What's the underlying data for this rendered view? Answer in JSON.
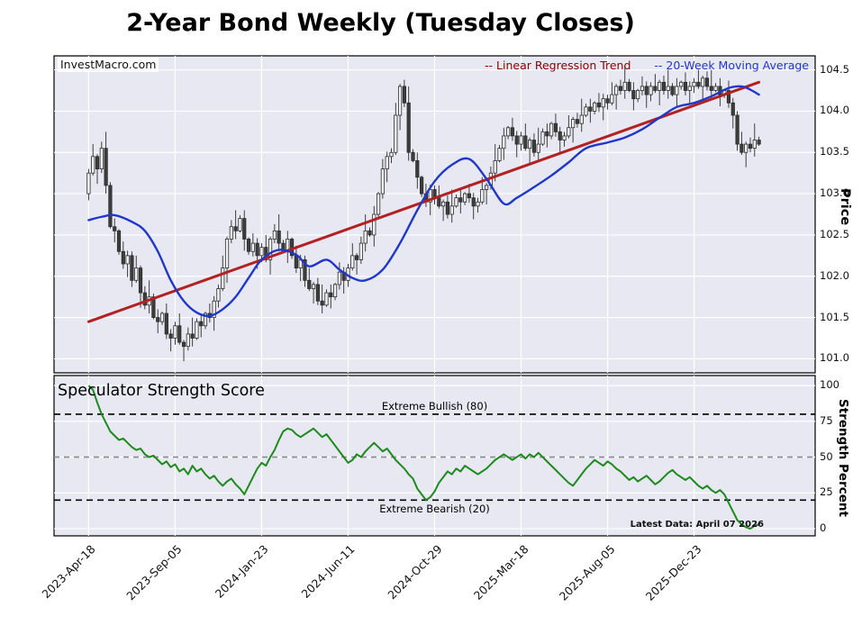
{
  "title": "2-Year Bond Weekly (Tuesday Closes)",
  "colors": {
    "panel_bg": "#e8e8f2",
    "grid": "#ffffff",
    "candle_edge": "#2b2b2b",
    "candle_down": "#3d3d3d",
    "candle_up": "#f2f2f7"
  },
  "chart_data": [
    {
      "type": "candlestick",
      "title": "",
      "watermark": "InvestMacro.com",
      "ylabel": "Price",
      "ylim": [
        100.83,
        104.67
      ],
      "ytick_values": [
        101.0,
        101.5,
        102.0,
        102.5,
        103.0,
        103.5,
        104.0,
        104.5
      ],
      "ytick_labels": [
        "101.0",
        "101.5",
        "102.0",
        "102.5",
        "103.0",
        "103.5",
        "104.0",
        "104.5"
      ],
      "x_unit": "week",
      "xlim_weeks": [
        -8,
        168
      ],
      "xtick_weeks": [
        0,
        20,
        40,
        60,
        80,
        100,
        120,
        140
      ],
      "xtick_labels": [
        "2023-Apr-18",
        "2023-Sep-05",
        "2024-Jan-23",
        "2024-Jun-11",
        "2024-Oct-29",
        "2025-Mar-18",
        "2025-Aug-05",
        "2025-Dec-23"
      ],
      "legend": [
        {
          "label": "-- Linear Regression Trend",
          "color": "#8b0000"
        },
        {
          "label": "-- 20-Week Moving Average",
          "color": "#2038c8"
        }
      ],
      "candles_weekly_closes": [
        103.25,
        103.45,
        103.3,
        103.55,
        103.1,
        102.6,
        102.55,
        102.3,
        102.15,
        102.25,
        101.95,
        102.1,
        101.8,
        101.65,
        101.75,
        101.5,
        101.45,
        101.55,
        101.3,
        101.25,
        101.4,
        101.2,
        101.15,
        101.3,
        101.25,
        101.45,
        101.4,
        101.55,
        101.5,
        101.7,
        101.85,
        102.1,
        102.45,
        102.6,
        102.55,
        102.7,
        102.45,
        102.3,
        102.4,
        102.25,
        102.35,
        102.2,
        102.45,
        102.55,
        102.4,
        102.3,
        102.45,
        102.25,
        102.1,
        102.2,
        101.95,
        101.85,
        101.9,
        101.7,
        101.65,
        101.8,
        101.75,
        101.9,
        102.05,
        101.95,
        102.1,
        102.25,
        102.2,
        102.4,
        102.55,
        102.5,
        102.75,
        103.0,
        103.3,
        103.45,
        103.5,
        103.95,
        104.3,
        104.1,
        103.5,
        103.4,
        103.2,
        103.0,
        102.9,
        103.05,
        102.95,
        102.85,
        102.9,
        102.75,
        102.85,
        102.95,
        102.9,
        103.0,
        102.95,
        102.85,
        102.9,
        103.05,
        103.1,
        103.25,
        103.4,
        103.55,
        103.7,
        103.8,
        103.7,
        103.6,
        103.7,
        103.55,
        103.65,
        103.5,
        103.6,
        103.75,
        103.7,
        103.85,
        103.75,
        103.65,
        103.7,
        103.8,
        103.9,
        103.85,
        103.95,
        104.05,
        104.0,
        104.1,
        104.05,
        104.15,
        104.1,
        104.2,
        104.3,
        104.25,
        104.35,
        104.25,
        104.15,
        104.25,
        104.3,
        104.2,
        104.3,
        104.25,
        104.35,
        104.25,
        104.3,
        104.2,
        104.3,
        104.35,
        104.25,
        104.3,
        104.35,
        104.3,
        104.4,
        104.3,
        104.25,
        104.3,
        104.2,
        104.25,
        104.1,
        103.95,
        103.6,
        103.5,
        103.6,
        103.55,
        103.65,
        103.6
      ],
      "wick_up_pattern": [
        0.05,
        0.15,
        0.03,
        0.08,
        0.2,
        0.04,
        0.1,
        0.02,
        0.12,
        0.06
      ],
      "wick_down_pattern": [
        0.08,
        0.03,
        0.18,
        0.05,
        0.1,
        0.02,
        0.14,
        0.04,
        0.06,
        0.16
      ],
      "regression": {
        "start_week": 0,
        "start": 101.45,
        "end_week": 155,
        "end": 104.35,
        "color": "#b22222"
      },
      "ma_color": "#2038c8",
      "ma20_points": [
        [
          0,
          102.68
        ],
        [
          3,
          102.72
        ],
        [
          6,
          102.74
        ],
        [
          10,
          102.66
        ],
        [
          13,
          102.55
        ],
        [
          16,
          102.3
        ],
        [
          19,
          101.95
        ],
        [
          22,
          101.7
        ],
        [
          25,
          101.56
        ],
        [
          28,
          101.52
        ],
        [
          31,
          101.6
        ],
        [
          34,
          101.75
        ],
        [
          37,
          101.98
        ],
        [
          40,
          102.2
        ],
        [
          44,
          102.32
        ],
        [
          48,
          102.26
        ],
        [
          51,
          102.12
        ],
        [
          55,
          102.2
        ],
        [
          58,
          102.08
        ],
        [
          61,
          101.98
        ],
        [
          64,
          101.95
        ],
        [
          68,
          102.08
        ],
        [
          72,
          102.4
        ],
        [
          76,
          102.8
        ],
        [
          80,
          103.15
        ],
        [
          84,
          103.35
        ],
        [
          88,
          103.42
        ],
        [
          92,
          103.18
        ],
        [
          96,
          102.88
        ],
        [
          99,
          102.95
        ],
        [
          103,
          103.08
        ],
        [
          107,
          103.22
        ],
        [
          111,
          103.38
        ],
        [
          115,
          103.55
        ],
        [
          120,
          103.62
        ],
        [
          124,
          103.68
        ],
        [
          128,
          103.78
        ],
        [
          132,
          103.92
        ],
        [
          136,
          104.05
        ],
        [
          140,
          104.1
        ],
        [
          144,
          104.18
        ],
        [
          148,
          104.28
        ],
        [
          151,
          104.3
        ],
        [
          153,
          104.26
        ],
        [
          155,
          104.2
        ]
      ]
    },
    {
      "type": "line",
      "title": "Speculator Strength Score",
      "ylabel": "Strength Percent",
      "ylim": [
        -5,
        107
      ],
      "ytick_values": [
        0,
        25,
        50,
        75,
        100
      ],
      "ytick_labels": [
        "0",
        "25",
        "50",
        "75",
        "100"
      ],
      "color": "#1d8a1d",
      "values": [
        100,
        97,
        88,
        80,
        74,
        68,
        65,
        62,
        63,
        60,
        57,
        55,
        56,
        52,
        50,
        51,
        48,
        45,
        47,
        43,
        45,
        40,
        42,
        38,
        44,
        40,
        42,
        38,
        35,
        37,
        33,
        30,
        33,
        35,
        31,
        28,
        24,
        30,
        36,
        42,
        46,
        44,
        50,
        55,
        62,
        68,
        70,
        69,
        66,
        64,
        66,
        68,
        70,
        67,
        64,
        66,
        62,
        58,
        54,
        50,
        46,
        48,
        52,
        50,
        54,
        57,
        60,
        57,
        54,
        56,
        52,
        48,
        45,
        42,
        38,
        35,
        28,
        24,
        20,
        22,
        26,
        32,
        36,
        40,
        38,
        42,
        40,
        44,
        42,
        40,
        38,
        40,
        42,
        45,
        48,
        50,
        52,
        50,
        48,
        50,
        52,
        49,
        52,
        50,
        53,
        50,
        47,
        44,
        41,
        38,
        35,
        32,
        30,
        34,
        38,
        42,
        45,
        48,
        46,
        44,
        47,
        45,
        42,
        40,
        37,
        34,
        36,
        33,
        35,
        37,
        34,
        31,
        33,
        36,
        39,
        41,
        38,
        36,
        34,
        36,
        33,
        30,
        28,
        30,
        27,
        25,
        27,
        24,
        18,
        12,
        6,
        3,
        1,
        0,
        2,
        3
      ],
      "thresholds": [
        {
          "value": 80,
          "label": "Extreme Bullish (80)",
          "color": "#000000",
          "dash": "7 5"
        },
        {
          "value": 50,
          "label": "",
          "color": "#8a8a8a",
          "dash": "6 5"
        },
        {
          "value": 20,
          "label": "Extreme Bearish (20)",
          "color": "#000000",
          "dash": "7 5"
        }
      ],
      "annotation": "Latest Data: April 07 2026"
    }
  ]
}
